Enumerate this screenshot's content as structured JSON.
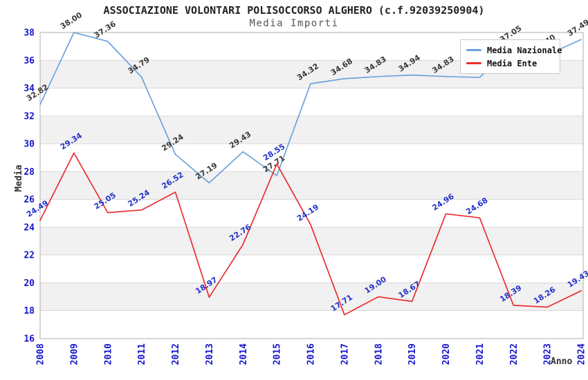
{
  "chart_data": {
    "type": "line",
    "title": "ASSOCIAZIONE VOLONTARI POLISOCCORSO ALGHERO (c.f.92039250904)",
    "subtitle": "Media Importi",
    "xlabel": "Anno",
    "ylabel": "Media",
    "x": [
      2008,
      2009,
      2010,
      2011,
      2012,
      2013,
      2014,
      2015,
      2016,
      2017,
      2018,
      2019,
      2020,
      2021,
      2022,
      2023,
      2024
    ],
    "ylim": [
      16,
      38
    ],
    "ytick_step": 2,
    "grid": "horizontal-bands-alternating",
    "legend_position": "top-right-inside",
    "series": [
      {
        "name": "Media Nazionale",
        "color": "#6BA3DB",
        "label_color": "#3A3A3A",
        "values": [
          32.82,
          38.0,
          37.36,
          34.79,
          29.24,
          27.19,
          29.43,
          27.71,
          34.32,
          34.68,
          34.83,
          34.94,
          34.83,
          34.77,
          37.05,
          36.4,
          37.49
        ]
      },
      {
        "name": "Media Ente",
        "color": "#EC2D2D",
        "label_color": "#2433C8",
        "values": [
          24.49,
          29.34,
          25.05,
          25.24,
          26.52,
          18.97,
          22.76,
          28.55,
          24.19,
          17.71,
          19.0,
          18.67,
          24.96,
          24.68,
          18.39,
          18.26,
          19.43
        ]
      }
    ],
    "colors": {
      "axis_tick_label": "#1414CC",
      "band": "#F1F1F1",
      "gridline": "#D8D8D8",
      "frame": "#ADADAD",
      "background": "#FFFFFF"
    }
  }
}
